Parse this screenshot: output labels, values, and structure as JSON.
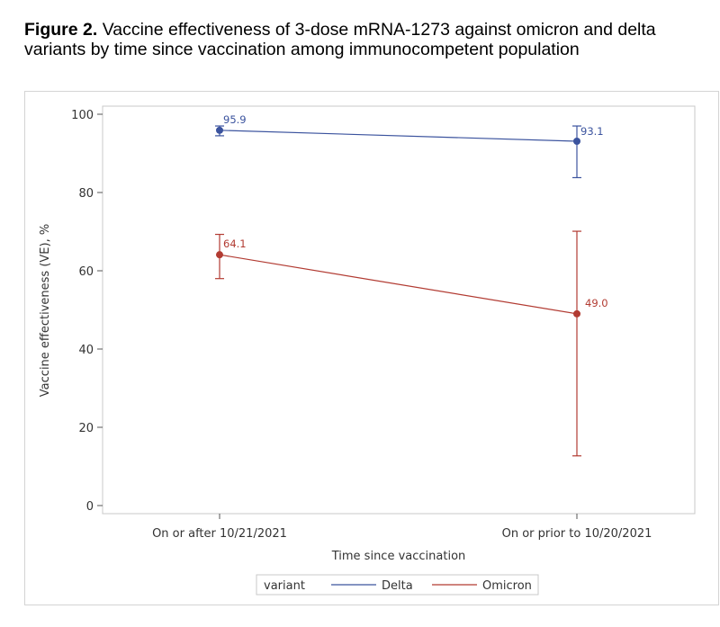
{
  "caption": {
    "label": "Figure 2.",
    "text": " Vaccine effectiveness of 3-dose mRNA-1273 against omicron and delta variants by time since vaccination among immunocompetent population"
  },
  "chart_data": {
    "type": "line",
    "title": "",
    "xlabel": "Time since vaccination",
    "ylabel": "Vaccine effectiveness (VE), %",
    "categories": [
      "On or after 10/21/2021",
      "On or prior to 10/20/2021"
    ],
    "ylim": [
      0,
      100
    ],
    "yticks": [
      0,
      20,
      40,
      60,
      80,
      100
    ],
    "grid": false,
    "legend": {
      "title": "variant",
      "placement": "bottom"
    },
    "series": [
      {
        "name": "Delta",
        "color": "#3b539e",
        "values": [
          95.9,
          93.1
        ],
        "labels": [
          "95.9",
          "93.1"
        ],
        "lower": [
          94.5,
          83.8
        ],
        "upper": [
          97.0,
          97.0
        ]
      },
      {
        "name": "Omicron",
        "color": "#b23b32",
        "values": [
          64.1,
          49.0
        ],
        "labels": [
          "64.1",
          "49.0"
        ],
        "lower": [
          58.0,
          12.7
        ],
        "upper": [
          69.3,
          70.1
        ]
      }
    ]
  }
}
